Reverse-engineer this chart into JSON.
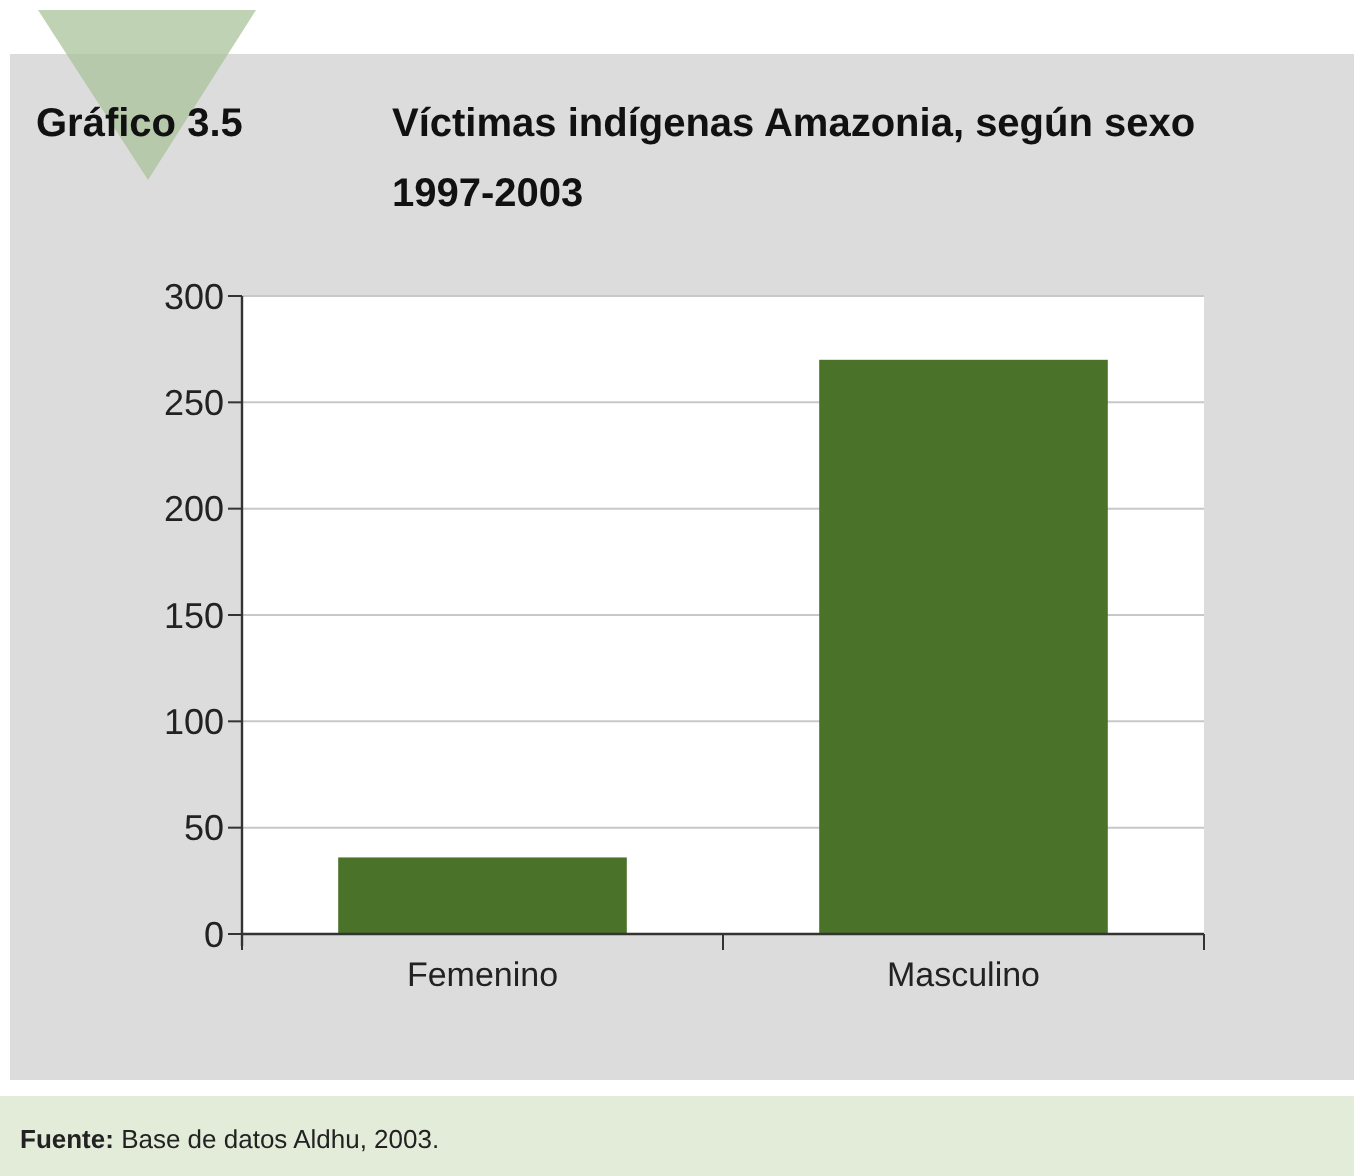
{
  "chart_data": {
    "type": "bar",
    "title": "Víctimas indígenas Amazonia, según sexo 1997-2003",
    "categories": [
      "Femenino",
      "Masculino"
    ],
    "values": [
      36,
      270
    ],
    "color": "#4a7229",
    "ylim": [
      0,
      300
    ],
    "yticks": [
      0,
      50,
      100,
      150,
      200,
      250,
      300
    ],
    "grid": "y",
    "annotations": [
      "Gráfico 3.5",
      "Fuente: Base de datos Aldhu, 2003."
    ]
  }
}
